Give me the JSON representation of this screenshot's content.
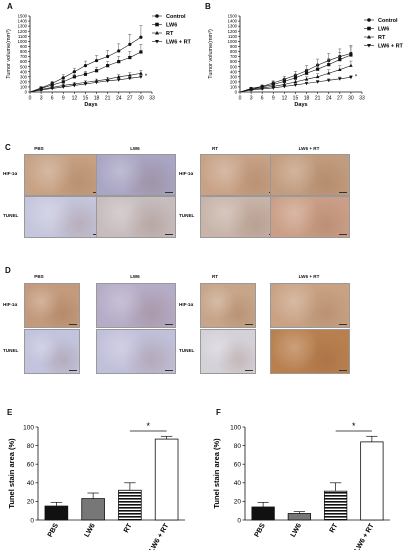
{
  "panels": {
    "A": "A",
    "B": "B",
    "C": "C",
    "D": "D",
    "E": "E",
    "F": "F"
  },
  "chart_data": [
    {
      "id": "A",
      "type": "line",
      "xlabel": "Days",
      "ylabel": "Tumor volume(mm³)",
      "x": [
        0,
        3,
        6,
        9,
        12,
        15,
        18,
        21,
        24,
        27,
        30,
        33
      ],
      "xticks": [
        0,
        3,
        6,
        9,
        12,
        15,
        18,
        21,
        24,
        27,
        30,
        33
      ],
      "xlim": [
        0,
        33
      ],
      "yticks": [
        0,
        100,
        200,
        300,
        400,
        500,
        600,
        700,
        800,
        900,
        1000,
        1100,
        1200,
        1300,
        1400,
        1500
      ],
      "ylim": [
        0,
        1500
      ],
      "legend_position": "right",
      "series": [
        {
          "name": "Control",
          "marker": "circle",
          "x": [
            3,
            6,
            9,
            12,
            15,
            18,
            21,
            24,
            27,
            30
          ],
          "values": [
            80,
            170,
            280,
            400,
            520,
            620,
            700,
            810,
            940,
            1080
          ],
          "err": [
            25,
            40,
            60,
            70,
            90,
            100,
            120,
            140,
            200,
            230
          ]
        },
        {
          "name": "LW6",
          "marker": "square",
          "x": [
            3,
            6,
            9,
            12,
            15,
            18,
            21,
            24,
            27,
            30
          ],
          "values": [
            70,
            140,
            200,
            300,
            350,
            420,
            520,
            600,
            680,
            790
          ],
          "err": [
            20,
            30,
            40,
            50,
            60,
            70,
            80,
            100,
            120,
            150
          ]
        },
        {
          "name": "RT",
          "marker": "triangle-up",
          "x": [
            3,
            6,
            9,
            12,
            15,
            18,
            21,
            24,
            27,
            30
          ],
          "values": [
            50,
            90,
            130,
            160,
            190,
            220,
            250,
            300,
            330,
            370
          ],
          "err": [
            10,
            15,
            20,
            25,
            30,
            35,
            40,
            45,
            50,
            60
          ]
        },
        {
          "name": "LW6 + RT",
          "marker": "triangle-down",
          "x": [
            3,
            6,
            9,
            12,
            15,
            18,
            21,
            24,
            27,
            30
          ],
          "values": [
            40,
            70,
            100,
            130,
            160,
            190,
            220,
            240,
            270,
            300
          ],
          "err": [
            10,
            15,
            15,
            20,
            25,
            25,
            30,
            30,
            35,
            40
          ]
        }
      ],
      "annotation": "*"
    },
    {
      "id": "B",
      "type": "line",
      "xlabel": "Days",
      "ylabel": "Tumor volume(mm³)",
      "x": [
        0,
        3,
        6,
        9,
        12,
        15,
        18,
        21,
        24,
        27,
        30,
        33
      ],
      "xticks": [
        0,
        3,
        6,
        9,
        12,
        15,
        18,
        21,
        24,
        27,
        30,
        33
      ],
      "xlim": [
        0,
        33
      ],
      "yticks": [
        0,
        100,
        200,
        300,
        400,
        500,
        600,
        700,
        800,
        900,
        1000,
        1100,
        1200,
        1300,
        1400,
        1500
      ],
      "ylim": [
        0,
        1500
      ],
      "legend_position": "right",
      "series": [
        {
          "name": "Control",
          "marker": "circle",
          "x": [
            3,
            6,
            9,
            12,
            15,
            18,
            21,
            24,
            27,
            30
          ],
          "values": [
            70,
            110,
            180,
            250,
            330,
            420,
            530,
            620,
            700,
            760
          ],
          "err": [
            20,
            30,
            40,
            60,
            80,
            100,
            120,
            140,
            150,
            160
          ]
        },
        {
          "name": "LW6",
          "marker": "square",
          "x": [
            3,
            6,
            9,
            12,
            15,
            18,
            21,
            24,
            27,
            30
          ],
          "values": [
            60,
            100,
            150,
            210,
            280,
            370,
            450,
            540,
            640,
            730
          ],
          "err": [
            15,
            25,
            35,
            50,
            60,
            80,
            100,
            120,
            140,
            160
          ]
        },
        {
          "name": "RT",
          "marker": "triangle-up",
          "x": [
            3,
            6,
            9,
            12,
            15,
            18,
            21,
            24,
            27,
            30
          ],
          "values": [
            50,
            80,
            110,
            150,
            200,
            250,
            300,
            370,
            440,
            520
          ],
          "err": [
            10,
            15,
            20,
            30,
            40,
            50,
            60,
            70,
            80,
            90
          ]
        },
        {
          "name": "LW6 + RT",
          "marker": "triangle-down",
          "x": [
            3,
            6,
            9,
            12,
            15,
            18,
            21,
            24,
            27,
            30
          ],
          "values": [
            40,
            60,
            80,
            110,
            140,
            170,
            200,
            230,
            260,
            290
          ],
          "err": [
            10,
            10,
            15,
            20,
            20,
            25,
            30,
            30,
            35,
            40
          ]
        }
      ],
      "annotation": "*"
    },
    {
      "id": "E",
      "type": "bar",
      "ylabel": "Tunel stain area (%)",
      "categories": [
        "PBS",
        "LW6",
        "RT",
        "LW6 + RT"
      ],
      "values": [
        15,
        23,
        32,
        87
      ],
      "err": [
        4,
        6,
        8,
        3
      ],
      "fills": [
        "#111111",
        "#777777",
        "hatch",
        "#ffffff"
      ],
      "yticks": [
        0,
        20,
        40,
        60,
        80,
        100
      ],
      "ylim": [
        0,
        100
      ],
      "annotation": "*"
    },
    {
      "id": "F",
      "type": "bar",
      "ylabel": "Tunel stain area (%)",
      "categories": [
        "PBS",
        "LW6",
        "RT",
        "LW6 + RT"
      ],
      "values": [
        14,
        7,
        31,
        84
      ],
      "err": [
        5,
        2,
        9,
        6
      ],
      "fills": [
        "#111111",
        "#777777",
        "hatch",
        "#ffffff"
      ],
      "yticks": [
        0,
        20,
        40,
        60,
        80,
        100
      ],
      "ylim": [
        0,
        100
      ],
      "annotation": "*"
    }
  ],
  "micro_C": {
    "titles": [
      "PBS",
      "LW6",
      "RT",
      "LW6 + RT"
    ],
    "rows": [
      "HIF-1α",
      "TUNEL"
    ],
    "tints": [
      [
        "#c7a183",
        "#a9a5c4",
        "#c8a286",
        "#c29c7e"
      ],
      [
        "#c5c6dc",
        "#c7bdbf",
        "#c8b4a9",
        "#cb9f87"
      ]
    ]
  },
  "micro_D": {
    "titles": [
      "PBS",
      "LW6",
      "RT",
      "LW6 + RT"
    ],
    "rows": [
      "HIF-1α",
      "TUNEL"
    ],
    "tints": [
      [
        "#c39a7c",
        "#b5acc7",
        "#c7a589",
        "#c9a284"
      ],
      [
        "#c2c3dc",
        "#c1c0da",
        "#d5d1d9",
        "#b9804f"
      ]
    ]
  }
}
